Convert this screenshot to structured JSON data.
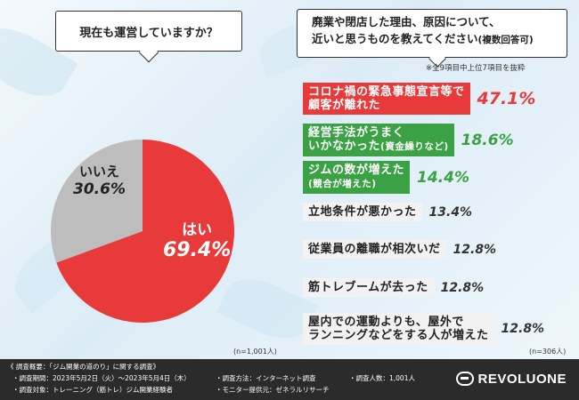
{
  "question_left": "現在も運営していますか？",
  "question_right_line1": "廃業や閉店した理由、原因について、",
  "question_right_line2": "近いと思うものを教えてください",
  "question_right_suffix": "(複数回答可)",
  "note": "※全9項目中上位7項目を抜粋",
  "n_left": "(n=1,001人)",
  "n_right": "(n=306人)",
  "colors": {
    "red": "#e83a3a",
    "green": "#3aa244",
    "gray": "#bdbdbd"
  },
  "chart_data": [
    {
      "type": "pie",
      "title": "現在も運営していますか？",
      "slices": [
        {
          "label": "はい",
          "value": 69.4,
          "display": "69.4%"
        },
        {
          "label": "いいえ",
          "value": 30.6,
          "display": "30.6%"
        }
      ]
    },
    {
      "type": "bar",
      "title": "廃業や閉店した理由、原因について、近いと思うものを教えてください(複数回答可)",
      "items": [
        {
          "line1": "コロナ禍の緊急事態宣言等で",
          "line2": "顧客が離れた",
          "sub": "",
          "value": 47.1,
          "display": "47.1%",
          "style": "red"
        },
        {
          "line1": "経営手法がうまく",
          "line2": "いかなかった",
          "sub": "(資金繰りなど)",
          "value": 18.6,
          "display": "18.6%",
          "style": "green"
        },
        {
          "line1": "ジムの数が増えた",
          "line2": "",
          "sub": "(競合が増えた)",
          "value": 14.4,
          "display": "14.4%",
          "style": "green"
        },
        {
          "line1": "立地条件が悪かった",
          "line2": "",
          "sub": "",
          "value": 13.4,
          "display": "13.4%",
          "style": "gray"
        },
        {
          "line1": "従業員の離職が相次いだ",
          "line2": "",
          "sub": "",
          "value": 12.8,
          "display": "12.8%",
          "style": "gray"
        },
        {
          "line1": "筋トレブームが去った",
          "line2": "",
          "sub": "",
          "value": 12.8,
          "display": "12.8%",
          "style": "gray"
        },
        {
          "line1": "屋内での運動よりも、屋外で",
          "line2": "ランニングなどをする人が増えた",
          "sub": "",
          "value": 12.8,
          "display": "12.8%",
          "style": "gray"
        }
      ]
    }
  ],
  "footer": {
    "title": "《 調査概要：「ジム開業の道のり」に関する調査》",
    "period": "・調査期間：2023年5月2日（火）〜2023年5月4日（木）",
    "method": "・調査方法：インターネット調査",
    "count": "・調査人数：1,001人",
    "target": "・調査対象：トレーニング（筋トレ）ジム開業経験者",
    "provider": "・モニター提供元：ゼネラルリサーチ",
    "logo": "REVOLUONE"
  }
}
